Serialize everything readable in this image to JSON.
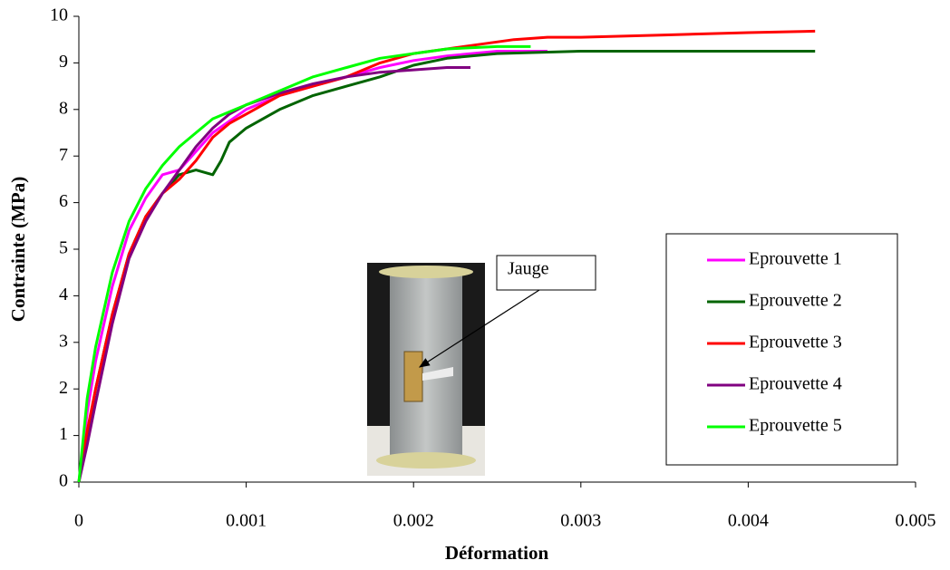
{
  "chart_data": {
    "type": "line",
    "xlabel": "Déformation",
    "ylabel": "Contrainte (MPa)",
    "xlim": [
      0,
      0.005
    ],
    "ylim": [
      0,
      10
    ],
    "xticks": [
      0,
      0.001,
      0.002,
      0.003,
      0.004,
      0.005
    ],
    "yticks": [
      0,
      1,
      2,
      3,
      4,
      5,
      6,
      7,
      8,
      9,
      10
    ],
    "annotation": "Jauge",
    "series": [
      {
        "name": "Eprouvette 1",
        "color": "#ff00ff",
        "x": [
          0,
          5e-05,
          0.0001,
          0.0002,
          0.0003,
          0.0004,
          0.0005,
          0.0006,
          0.0007,
          0.0008,
          0.001,
          0.0012,
          0.0014,
          0.0016,
          0.0018,
          0.002,
          0.0022,
          0.0025,
          0.0028
        ],
        "values": [
          0,
          1.5,
          2.6,
          4.2,
          5.4,
          6.1,
          6.6,
          6.7,
          7.1,
          7.5,
          8.0,
          8.3,
          8.5,
          8.7,
          8.9,
          9.05,
          9.15,
          9.25,
          9.25
        ]
      },
      {
        "name": "Eprouvette 2",
        "color": "#006400",
        "x": [
          0,
          5e-05,
          0.0001,
          0.0002,
          0.0003,
          0.0004,
          0.0005,
          0.0006,
          0.0007,
          0.00075,
          0.0008,
          0.00085,
          0.0009,
          0.001,
          0.0012,
          0.0014,
          0.0016,
          0.0018,
          0.002,
          0.0022,
          0.0025,
          0.003,
          0.0035,
          0.004,
          0.0044
        ],
        "values": [
          0,
          1.0,
          2.0,
          3.6,
          4.9,
          5.7,
          6.2,
          6.6,
          6.7,
          6.65,
          6.6,
          6.9,
          7.3,
          7.6,
          8.0,
          8.3,
          8.5,
          8.7,
          8.95,
          9.1,
          9.2,
          9.25,
          9.25,
          9.25,
          9.25
        ]
      },
      {
        "name": "Eprouvette 3",
        "color": "#ff0000",
        "x": [
          0,
          5e-05,
          0.0001,
          0.0002,
          0.0003,
          0.0004,
          0.0005,
          0.0006,
          0.0007,
          0.0008,
          0.0009,
          0.001,
          0.0012,
          0.0014,
          0.0016,
          0.0018,
          0.002,
          0.0022,
          0.0024,
          0.0026,
          0.0028,
          0.003,
          0.0035,
          0.004,
          0.0044
        ],
        "values": [
          0,
          1.1,
          2.0,
          3.6,
          4.9,
          5.7,
          6.2,
          6.5,
          6.9,
          7.4,
          7.7,
          7.9,
          8.3,
          8.5,
          8.7,
          9.0,
          9.2,
          9.3,
          9.4,
          9.5,
          9.55,
          9.55,
          9.6,
          9.65,
          9.68
        ]
      },
      {
        "name": "Eprouvette 4",
        "color": "#800080",
        "x": [
          0,
          5e-05,
          0.0001,
          0.0002,
          0.0003,
          0.0004,
          0.0005,
          0.0006,
          0.0007,
          0.0008,
          0.0009,
          0.001,
          0.0012,
          0.0014,
          0.0016,
          0.0018,
          0.002,
          0.0022,
          0.00234
        ],
        "values": [
          0,
          0.8,
          1.7,
          3.4,
          4.8,
          5.6,
          6.2,
          6.7,
          7.2,
          7.6,
          7.9,
          8.1,
          8.35,
          8.55,
          8.7,
          8.8,
          8.85,
          8.9,
          8.9
        ]
      },
      {
        "name": "Eprouvette 5",
        "color": "#00ff00",
        "x": [
          0,
          5e-05,
          0.0001,
          0.0002,
          0.0003,
          0.0004,
          0.0005,
          0.0006,
          0.0007,
          0.0008,
          0.001,
          0.0012,
          0.0014,
          0.0016,
          0.0018,
          0.002,
          0.0022,
          0.0025,
          0.0027
        ],
        "values": [
          0,
          1.8,
          2.9,
          4.5,
          5.6,
          6.3,
          6.8,
          7.2,
          7.5,
          7.8,
          8.1,
          8.4,
          8.7,
          8.9,
          9.1,
          9.2,
          9.3,
          9.35,
          9.35
        ]
      }
    ]
  }
}
